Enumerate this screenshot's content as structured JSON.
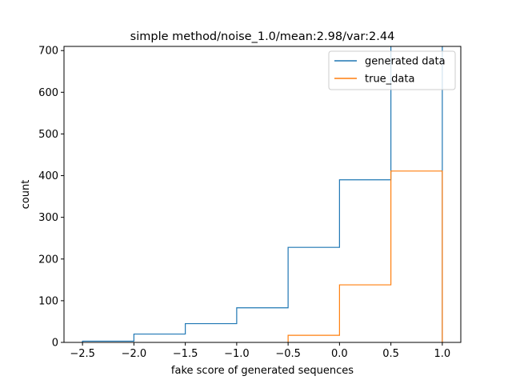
{
  "chart_data": {
    "type": "histogram-step",
    "title": "simple method/noise_1.0/mean:2.98/var:2.44",
    "xlabel": "fake score of generated sequences",
    "ylabel": "count",
    "xlim": [
      -2.68,
      1.18
    ],
    "ylim": [
      0,
      710
    ],
    "xticks": [
      -2.5,
      -2.0,
      -1.5,
      -1.0,
      -0.5,
      0.0,
      0.5,
      1.0
    ],
    "xtick_labels": [
      "−2.5",
      "−2.0",
      "−1.5",
      "−1.0",
      "−0.5",
      "0.0",
      "0.5",
      "1.0"
    ],
    "yticks": [
      0,
      100,
      200,
      300,
      400,
      500,
      600,
      700
    ],
    "ytick_labels": [
      "0",
      "100",
      "200",
      "300",
      "400",
      "500",
      "600",
      "700"
    ],
    "legend_position": "top-right",
    "series": [
      {
        "name": "generated data",
        "color": "#1f77b4",
        "bin_edges": [
          -2.5,
          -2.0,
          -1.5,
          -1.0,
          -0.5,
          0.0,
          0.5,
          1.0
        ],
        "counts": [
          3,
          20,
          45,
          83,
          228,
          390,
          720
        ]
      },
      {
        "name": "true_data",
        "color": "#ff7f0e",
        "bin_edges": [
          -0.5,
          0.0,
          0.5,
          1.0
        ],
        "counts": [
          17,
          138,
          411
        ]
      }
    ]
  }
}
